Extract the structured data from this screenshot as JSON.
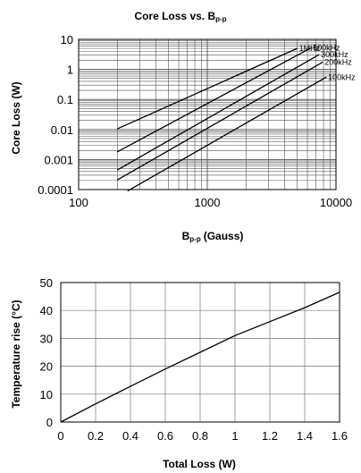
{
  "chart_data": [
    {
      "type": "line",
      "title": "Core Loss vs. B",
      "title_sub": "p-p",
      "xlabel": "B",
      "xlabel_sub": "p-p",
      "xlabel_unit": "(Gauss)",
      "ylabel": "Core Loss (W)",
      "x_scale": "log",
      "y_scale": "log",
      "xlim": [
        100,
        10000
      ],
      "ylim": [
        0.0001,
        10
      ],
      "x_ticks": [
        100,
        1000,
        10000
      ],
      "x_tick_labels": [
        "100",
        "1000",
        "10000"
      ],
      "y_ticks": [
        0.0001,
        0.001,
        0.01,
        0.1,
        1,
        10
      ],
      "y_tick_labels": [
        "0.0001",
        "0.001",
        "0.01",
        "0.1",
        "1",
        "10"
      ],
      "grid": true,
      "series": [
        {
          "name": "1MHz",
          "x": [
            200,
            5000
          ],
          "y": [
            0.0105,
            5.0
          ]
        },
        {
          "name": "500kHz",
          "x": [
            200,
            6400
          ],
          "y": [
            0.0018,
            5.2
          ]
        },
        {
          "name": "300kHz",
          "x": [
            200,
            7400
          ],
          "y": [
            0.00045,
            3.1
          ]
        },
        {
          "name": "200kHz",
          "x": [
            200,
            7900
          ],
          "y": [
            0.00021,
            1.75
          ]
        },
        {
          "name": "100kHz",
          "x": [
            240,
            8400
          ],
          "y": [
            9e-05,
            0.55
          ]
        }
      ]
    },
    {
      "type": "line",
      "title": "",
      "xlabel": "Total Loss (W)",
      "ylabel": "Temperature rise (°C)",
      "xlim": [
        0,
        1.6
      ],
      "ylim": [
        0,
        50
      ],
      "x_ticks": [
        0,
        0.2,
        0.4,
        0.6,
        0.8,
        1,
        1.2,
        1.4,
        1.6
      ],
      "x_tick_labels": [
        "0",
        "0.2",
        "0.4",
        "0.6",
        "0.8",
        "1",
        "1.2",
        "1.4",
        "1.6"
      ],
      "y_ticks": [
        0,
        10,
        20,
        30,
        40,
        50
      ],
      "y_tick_labels": [
        "0",
        "10",
        "20",
        "30",
        "40",
        "50"
      ],
      "grid": true,
      "series": [
        {
          "name": "",
          "x": [
            0,
            0.2,
            0.4,
            0.6,
            0.8,
            1.0,
            1.2,
            1.4,
            1.6
          ],
          "y": [
            0,
            6.5,
            12.8,
            19,
            25,
            31,
            36,
            41,
            46.5
          ]
        }
      ]
    }
  ]
}
